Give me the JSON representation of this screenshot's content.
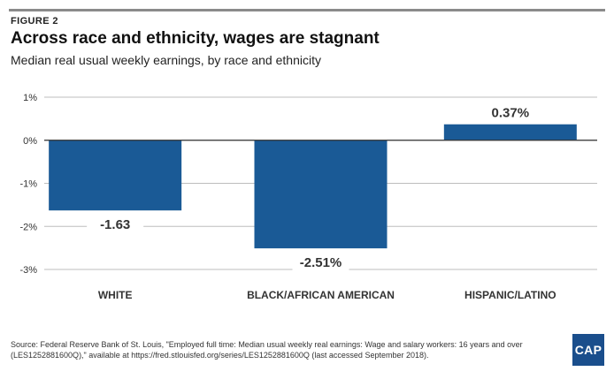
{
  "figure_label": "FIGURE 2",
  "logo_text": "CAP",
  "source_text": "Source: Federal Reserve Bank of St. Louis, \"Employed full time: Median usual weekly real earnings: Wage and salary workers: 16 years and over (LES1252881600Q),\" available at https://fred.stlouisfed.org/series/LES1252881600Q (last accessed September 2018).",
  "colors": {
    "bar": "#1a5a96",
    "grid": "#bdbdbd",
    "axis": "#333333",
    "logo": "#1a4e8c"
  },
  "chart_data": {
    "type": "bar",
    "title": "Across race and ethnicity, wages are stagnant",
    "subtitle": "Median real usual weekly earnings, by race and ethnicity",
    "categories": [
      "WHITE",
      "BLACK/AFRICAN AMERICAN",
      "HISPANIC/LATINO"
    ],
    "values": [
      -1.63,
      -2.51,
      0.37
    ],
    "data_labels": [
      "-1.63",
      "-2.51%",
      "0.37%"
    ],
    "ylim": [
      -3,
      1
    ],
    "yticks": [
      1,
      0,
      -1,
      -2,
      -3
    ],
    "ytick_labels": [
      "1%",
      "0%",
      "-1%",
      "-2%",
      "-3%"
    ],
    "grid": true,
    "xlabel": "",
    "ylabel": ""
  }
}
